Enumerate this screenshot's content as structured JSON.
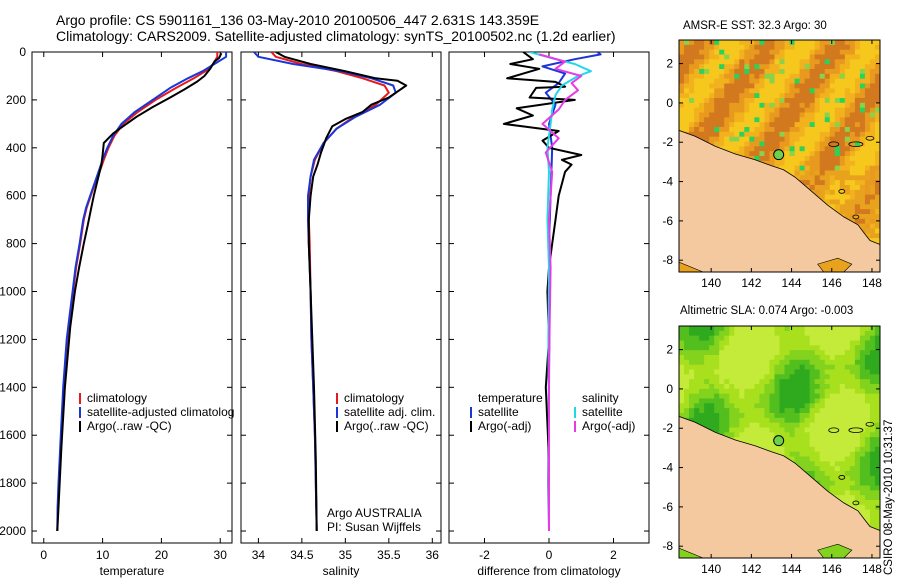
{
  "header": {
    "line1": "Argo profile: CS 5901161_136 03-May-2010 20100506_447 2.631S 143.359E",
    "line2": "Climatology: CARS2009. Satellite-adjusted climatology: synTS_20100502.nc (1.2d earlier)"
  },
  "colors": {
    "climatology": "#e8191a",
    "satellite": "#1a36d8",
    "argo": "#000000",
    "sat_salinity": "#22d8e6",
    "argo_adj_salinity": "#e63be6"
  },
  "chart_data": [
    {
      "type": "line",
      "panel": "temperature",
      "xlabel": "temperature",
      "ylabel": "",
      "xlim": [
        -2,
        32
      ],
      "ylim": [
        2050,
        0
      ],
      "y_reversed": true,
      "xticks": [
        0,
        10,
        20,
        30
      ],
      "yticks": [
        0,
        200,
        400,
        600,
        800,
        1000,
        1200,
        1400,
        1600,
        1800,
        2000
      ],
      "legend": [
        "climatology",
        "satellite-adjusted climatolog",
        "Argo(..raw -QC)"
      ],
      "series": [
        {
          "name": "climatology",
          "color": "#e8191a",
          "x": [
            29.5,
            29.5,
            28.8,
            27.5,
            25.5,
            22.5,
            19,
            16,
            13.5,
            12,
            11,
            10.2,
            9.5,
            8.7,
            8,
            7.3,
            6.8,
            6.2,
            5.5,
            5,
            4.5,
            4,
            3.4,
            3,
            2.6,
            2.4,
            2.3
          ],
          "y": [
            0,
            20,
            50,
            80,
            110,
            150,
            200,
            250,
            300,
            350,
            400,
            450,
            500,
            550,
            600,
            650,
            700,
            800,
            900,
            1000,
            1100,
            1200,
            1400,
            1600,
            1800,
            1900,
            2000
          ]
        },
        {
          "name": "satellite-adjusted climatology",
          "color": "#1a36d8",
          "x": [
            31,
            31,
            29,
            27,
            24.5,
            21.5,
            18.5,
            15.5,
            13.2,
            11.8,
            10.8,
            10,
            9.3,
            8.6,
            7.9,
            7.2,
            6.7,
            6.1,
            5.4,
            4.9,
            4.4,
            3.9,
            3.3,
            2.9,
            2.5,
            2.35,
            2.3
          ],
          "y": [
            0,
            20,
            50,
            80,
            110,
            150,
            200,
            250,
            300,
            350,
            400,
            450,
            500,
            550,
            600,
            650,
            700,
            800,
            900,
            1000,
            1100,
            1200,
            1400,
            1600,
            1800,
            1900,
            2000
          ]
        },
        {
          "name": "Argo(..raw -QC)",
          "color": "#000000",
          "x": [
            30.2,
            29.8,
            29,
            28.3,
            27.3,
            26,
            24,
            21.5,
            18.5,
            15.8,
            13.5,
            11.8,
            10.2,
            10,
            9.8,
            9.2,
            8.5,
            8,
            7.5,
            6.8,
            6,
            5.3,
            4.5,
            3.6,
            3,
            2.5,
            2.3
          ],
          "y": [
            5,
            25,
            40,
            70,
            100,
            125,
            155,
            190,
            230,
            270,
            310,
            340,
            380,
            430,
            470,
            530,
            600,
            660,
            720,
            800,
            900,
            1000,
            1150,
            1400,
            1650,
            1900,
            2000
          ]
        }
      ]
    },
    {
      "type": "line",
      "panel": "salinity",
      "xlabel": "salinity",
      "ylabel": "",
      "xlim": [
        33.8,
        36.1
      ],
      "ylim": [
        2050,
        0
      ],
      "y_reversed": true,
      "xticks": [
        34,
        34.5,
        35,
        35.5,
        36
      ],
      "yticks": [
        0,
        200,
        400,
        600,
        800,
        1000,
        1200,
        1400,
        1600,
        1800,
        2000
      ],
      "legend": [
        "climatology",
        "satellite adj. clim.",
        "Argo(..raw -QC)"
      ],
      "series": [
        {
          "name": "climatology",
          "color": "#e8191a",
          "x": [
            34.15,
            34.2,
            34.5,
            34.9,
            35.2,
            35.45,
            35.5,
            35.35,
            35.1,
            34.9,
            34.75,
            34.65,
            34.6,
            34.58,
            34.58,
            34.59,
            34.6,
            34.61,
            34.63,
            34.65,
            34.66,
            34.67
          ],
          "y": [
            0,
            20,
            50,
            80,
            110,
            140,
            170,
            220,
            270,
            320,
            380,
            450,
            520,
            600,
            700,
            800,
            1000,
            1200,
            1400,
            1600,
            1800,
            2000
          ]
        },
        {
          "name": "satellite adj. clim.",
          "color": "#1a36d8",
          "x": [
            33.95,
            34,
            34.4,
            34.95,
            35.3,
            35.55,
            35.58,
            35.4,
            35.12,
            34.9,
            34.75,
            34.64,
            34.6,
            34.57,
            34.57,
            34.58,
            34.6,
            34.61,
            34.63,
            34.65,
            34.66,
            34.67
          ],
          "y": [
            0,
            20,
            50,
            80,
            110,
            140,
            170,
            220,
            270,
            320,
            380,
            450,
            520,
            600,
            700,
            800,
            1000,
            1200,
            1400,
            1600,
            1800,
            2000
          ]
        },
        {
          "name": "Argo(..raw -QC)",
          "color": "#000000",
          "x": [
            34.2,
            34.3,
            34.6,
            35.0,
            35.35,
            35.6,
            35.7,
            35.62,
            35.5,
            35.3,
            35.2,
            35.0,
            34.85,
            34.78,
            34.72,
            34.68,
            34.63,
            34.6,
            34.58,
            34.58,
            34.6,
            34.62,
            34.64,
            34.66,
            34.67
          ],
          "y": [
            0,
            20,
            50,
            80,
            110,
            120,
            140,
            160,
            190,
            220,
            250,
            280,
            310,
            360,
            420,
            470,
            520,
            600,
            700,
            800,
            1000,
            1200,
            1400,
            1700,
            2000
          ]
        }
      ],
      "credit": [
        "Argo AUSTRALIA",
        "PI: Susan Wijffels"
      ]
    },
    {
      "type": "line",
      "panel": "difference",
      "xlabel": "difference from climatology",
      "ylabel": "",
      "xlim": [
        -3.1,
        3.1
      ],
      "ylim": [
        2050,
        0
      ],
      "y_reversed": true,
      "xticks": [
        -2,
        0,
        2
      ],
      "yticks": [
        0,
        200,
        400,
        600,
        800,
        1000,
        1200,
        1400,
        1600,
        1800,
        2000
      ],
      "legend_temperature_title": "temperature",
      "legend_salinity_title": "salinity",
      "legend_temperature": [
        "satellite",
        "Argo(-adj)"
      ],
      "legend_salinity": [
        "satellite",
        "Argo(-adj)"
      ],
      "series": [
        {
          "name": "temperature satellite",
          "color": "#1a36d8",
          "x": [
            1.5,
            1.6,
            0.8,
            -0.2,
            0.5,
            0.3,
            -0.1,
            0.2,
            0,
            0.1,
            0.05,
            0,
            0.02,
            0,
            -0.02,
            0
          ],
          "y": [
            0,
            10,
            30,
            60,
            90,
            130,
            170,
            220,
            300,
            400,
            600,
            800,
            1000,
            1400,
            1800,
            2000
          ]
        },
        {
          "name": "temperature Argo(-adj)",
          "color": "#000000",
          "x": [
            -0.8,
            -0.5,
            -1.2,
            -0.3,
            -1.3,
            0.2,
            0.5,
            -0.4,
            -0.6,
            0.8,
            -1,
            -0.5,
            -1.4,
            0.3,
            -0.2,
            0,
            1,
            0.4,
            0.7,
            0.5,
            0.4,
            0.3,
            0.2,
            0.1,
            0,
            -0.05,
            0,
            -0.1,
            0,
            0
          ],
          "y": [
            0,
            30,
            50,
            70,
            110,
            125,
            145,
            150,
            190,
            200,
            235,
            265,
            300,
            330,
            370,
            400,
            430,
            450,
            470,
            500,
            550,
            600,
            700,
            800,
            900,
            1000,
            1200,
            1400,
            1700,
            2000
          ]
        },
        {
          "name": "salinity satellite",
          "color": "#22d8e6",
          "x": [
            -0.6,
            0.2,
            0.8,
            1.3,
            0.9,
            0.4,
            0.2,
            0.1,
            0.05,
            -0.05,
            0,
            -0.05,
            0,
            -0.02,
            0,
            0
          ],
          "y": [
            0,
            30,
            50,
            80,
            100,
            140,
            180,
            240,
            300,
            400,
            500,
            700,
            900,
            1200,
            1600,
            2000
          ]
        },
        {
          "name": "salinity Argo(-adj)",
          "color": "#e63be6",
          "x": [
            -0.3,
            0.5,
            0.2,
            1,
            0.7,
            0.9,
            0.5,
            0.3,
            -0.2,
            0.3,
            -0.1,
            0.1,
            0,
            0.05,
            0,
            0
          ],
          "y": [
            10,
            40,
            70,
            100,
            130,
            160,
            200,
            240,
            300,
            360,
            420,
            500,
            700,
            900,
            1300,
            2000
          ]
        }
      ]
    }
  ],
  "maps": [
    {
      "title": "AMSR-E SST: 32.3 Argo: 30",
      "xticks": [
        "140",
        "142",
        "144",
        "146",
        "148"
      ],
      "yticks": [
        "2",
        "0",
        "-2",
        "-4",
        "-6",
        "-8"
      ],
      "xlim": [
        138.4,
        148.4
      ],
      "ylim": [
        -8.6,
        3.2
      ],
      "argo_position": [
        143.359,
        -2.631
      ],
      "field": "sst"
    },
    {
      "title": "Altimetric SLA: 0.074 Argo: -0.003",
      "xticks": [
        "140",
        "142",
        "144",
        "146",
        "148"
      ],
      "yticks": [
        "2",
        "0",
        "-2",
        "-4",
        "-6",
        "-8"
      ],
      "xlim": [
        138.4,
        148.4
      ],
      "ylim": [
        -8.6,
        3.2
      ],
      "argo_position": [
        143.359,
        -2.631
      ],
      "field": "sla"
    }
  ],
  "footer_side_label": "CSIRO 08-May-2010 10:31:37"
}
